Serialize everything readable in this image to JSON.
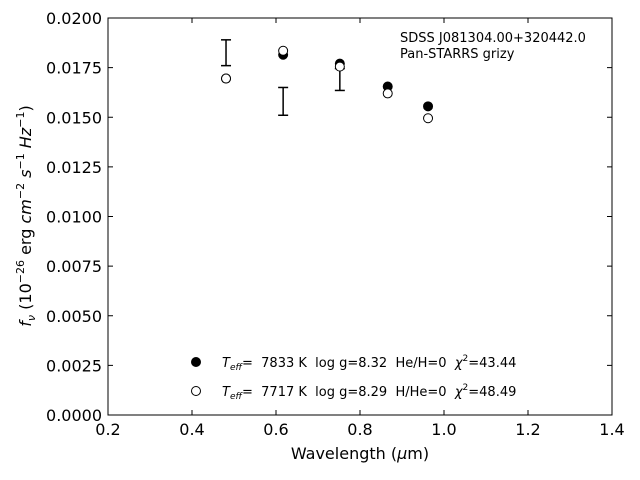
{
  "chart_data": {
    "type": "scatter",
    "xlabel_main": "Wavelength (",
    "xlabel_mu": "μ",
    "xlabel_unit": "m)",
    "ylabel_f": "f",
    "ylabel_nu": "ν",
    "ylabel_open": " (10",
    "ylabel_e1": "−26",
    "ylabel_erg": " erg ",
    "ylabel_cm": "cm",
    "ylabel_e2": "−2",
    "ylabel_s": " s",
    "ylabel_e3": "−1",
    "ylabel_hz": " Hz",
    "ylabel_e4": "−1",
    "ylabel_close": ")",
    "xlim": [
      0.2,
      1.4
    ],
    "ylim": [
      0.0,
      0.02
    ],
    "x_ticks": [
      0.2,
      0.4,
      0.6,
      0.8,
      1.0,
      1.2,
      1.4
    ],
    "x_tick_labels": [
      "0.2",
      "0.4",
      "0.6",
      "0.8",
      "1.0",
      "1.2",
      "1.4"
    ],
    "y_ticks": [
      0.0,
      0.0025,
      0.005,
      0.0075,
      0.01,
      0.0125,
      0.015,
      0.0175,
      0.02
    ],
    "y_tick_labels": [
      "0.0000",
      "0.0025",
      "0.0050",
      "0.0075",
      "0.0100",
      "0.0125",
      "0.0150",
      "0.0175",
      "0.0200"
    ],
    "grid": false,
    "annotation_lines": [
      "SDSS J081304.00+320442.0",
      "Pan-STARRS grizy"
    ],
    "observed": {
      "x": [
        0.481,
        0.617,
        0.752,
        0.866,
        0.962
      ],
      "y": [
        0.01825,
        0.0158,
        0.0169,
        null,
        null
      ],
      "yerr": [
        0.00065,
        0.0007,
        0.00055,
        null,
        null
      ]
    },
    "series": [
      {
        "marker": "filled-circle",
        "x": [
          0.481,
          0.617,
          0.752,
          0.866,
          0.962
        ],
        "y": [
          0.01695,
          0.01815,
          0.0177,
          0.01655,
          0.01555
        ],
        "legend": {
          "teff_sym": "T",
          "teff_sub": "eff",
          "teff_text": "=  7833 K  log g=8.32  He/H=0  ",
          "chi_sym": "χ",
          "chi_sup": "2",
          "chi_text": "=43.44"
        }
      },
      {
        "marker": "open-circle",
        "x": [
          0.481,
          0.617,
          0.752,
          0.866,
          0.962
        ],
        "y": [
          0.01695,
          0.01835,
          0.01755,
          0.0162,
          0.01495
        ],
        "legend": {
          "teff_sym": "T",
          "teff_sub": "eff",
          "teff_text": "=  7717 K  log g=8.29  H/He=0  ",
          "chi_sym": "χ",
          "chi_sup": "2",
          "chi_text": "=48.49"
        }
      }
    ]
  }
}
